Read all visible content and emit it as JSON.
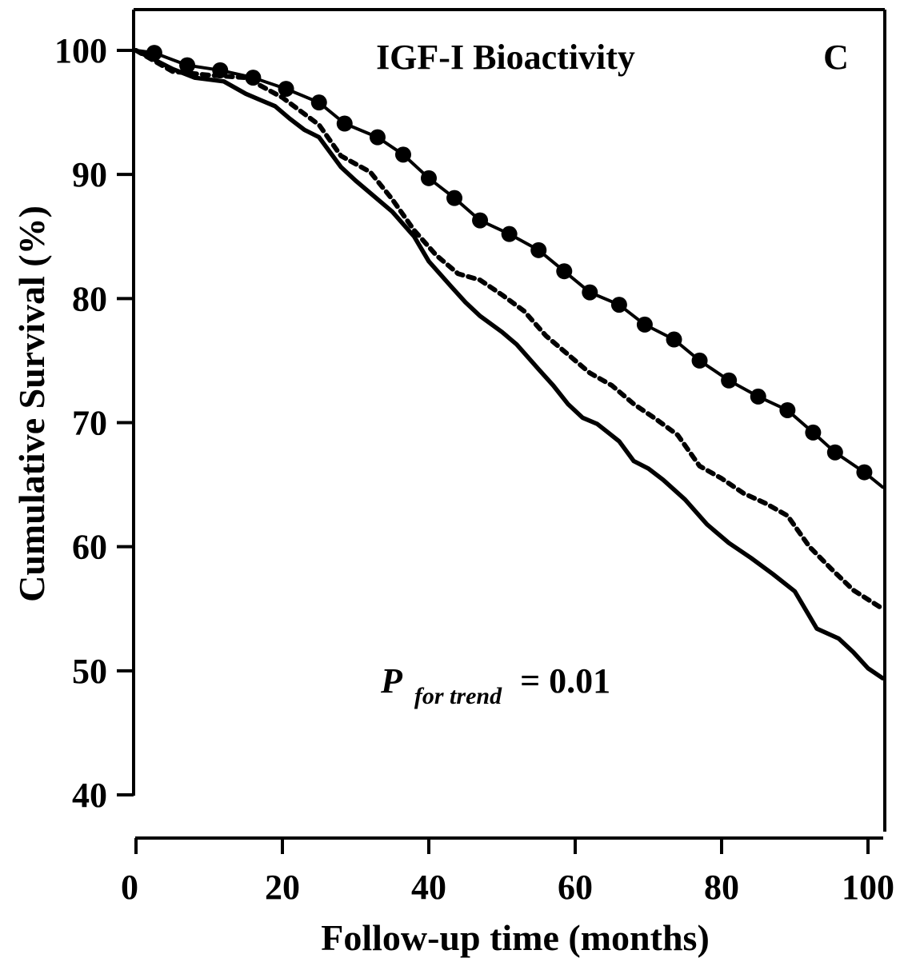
{
  "chart_data": {
    "type": "line",
    "title": "IGF-I Bioactivity",
    "panel_label": "C",
    "xlabel": "Follow-up time (months)",
    "ylabel": "Cumulative Survival (%)",
    "xlim": [
      0,
      102
    ],
    "ylim": [
      40,
      100
    ],
    "x_ticks": [
      0,
      20,
      40,
      60,
      80,
      100
    ],
    "y_ticks": [
      40,
      50,
      60,
      70,
      80,
      90,
      100
    ],
    "grid": false,
    "annotation": {
      "p_symbol": "P",
      "p_subscript": "for trend",
      "p_value_text": "= 0.01"
    },
    "series": [
      {
        "style": "solid-with-circles",
        "x": [
          0,
          2.5,
          7,
          11.5,
          16,
          20.5,
          25,
          28.5,
          33,
          36.5,
          40,
          43.5,
          47,
          51,
          55,
          58.5,
          62,
          66,
          69.5,
          73.5,
          77,
          81,
          85,
          89,
          92.5,
          95.5,
          99.5,
          102
        ],
        "y": [
          100,
          99.8,
          98.8,
          98.4,
          97.8,
          96.9,
          95.8,
          94.1,
          93.0,
          91.6,
          89.7,
          88.1,
          86.3,
          85.2,
          83.9,
          82.2,
          80.5,
          79.5,
          77.9,
          76.7,
          75.0,
          73.4,
          72.1,
          71.0,
          69.2,
          67.6,
          66.0,
          64.8
        ],
        "marker_x": [
          2.5,
          7,
          11.5,
          16,
          20.5,
          25,
          28.5,
          33,
          36.5,
          40,
          43.5,
          47,
          51,
          55,
          58.5,
          62,
          66,
          69.5,
          73.5,
          77,
          81,
          85,
          89,
          92.5,
          95.5,
          99.5
        ]
      },
      {
        "style": "dotted",
        "x": [
          0,
          5,
          10,
          15,
          20,
          25,
          28,
          32,
          35,
          38,
          41,
          44,
          47,
          50,
          53,
          56,
          59,
          62,
          65,
          68,
          71,
          74,
          77,
          80,
          83,
          86,
          89,
          92,
          95,
          98,
          102
        ],
        "y": [
          100,
          98.3,
          98.0,
          97.8,
          96.2,
          94.0,
          91.5,
          90.2,
          88.0,
          85.5,
          83.5,
          82.0,
          81.5,
          80.3,
          79.0,
          77.0,
          75.5,
          74.0,
          73.0,
          71.5,
          70.3,
          69.0,
          66.5,
          65.5,
          64.3,
          63.5,
          62.5,
          60.0,
          58.2,
          56.5,
          55.0
        ],
        "marker_x": []
      },
      {
        "style": "solid-thick",
        "x": [
          0,
          5,
          8,
          12,
          15,
          17,
          19,
          21,
          23,
          25,
          28,
          30,
          32,
          35,
          38,
          40,
          43,
          45,
          47,
          50,
          52,
          55,
          57,
          59,
          61,
          63,
          66,
          68,
          70,
          72,
          75,
          78,
          81,
          84,
          87,
          90,
          93,
          96,
          98,
          100,
          102
        ],
        "y": [
          100,
          98.5,
          97.8,
          97.5,
          96.5,
          96.0,
          95.5,
          94.5,
          93.6,
          93.0,
          90.6,
          89.5,
          88.5,
          87.0,
          85.0,
          83.0,
          81.0,
          79.7,
          78.6,
          77.3,
          76.3,
          74.3,
          73.0,
          71.5,
          70.4,
          69.9,
          68.5,
          66.9,
          66.3,
          65.4,
          63.8,
          61.8,
          60.3,
          59.1,
          57.8,
          56.4,
          53.4,
          52.6,
          51.5,
          50.2,
          49.4
        ],
        "marker_x": []
      }
    ]
  }
}
